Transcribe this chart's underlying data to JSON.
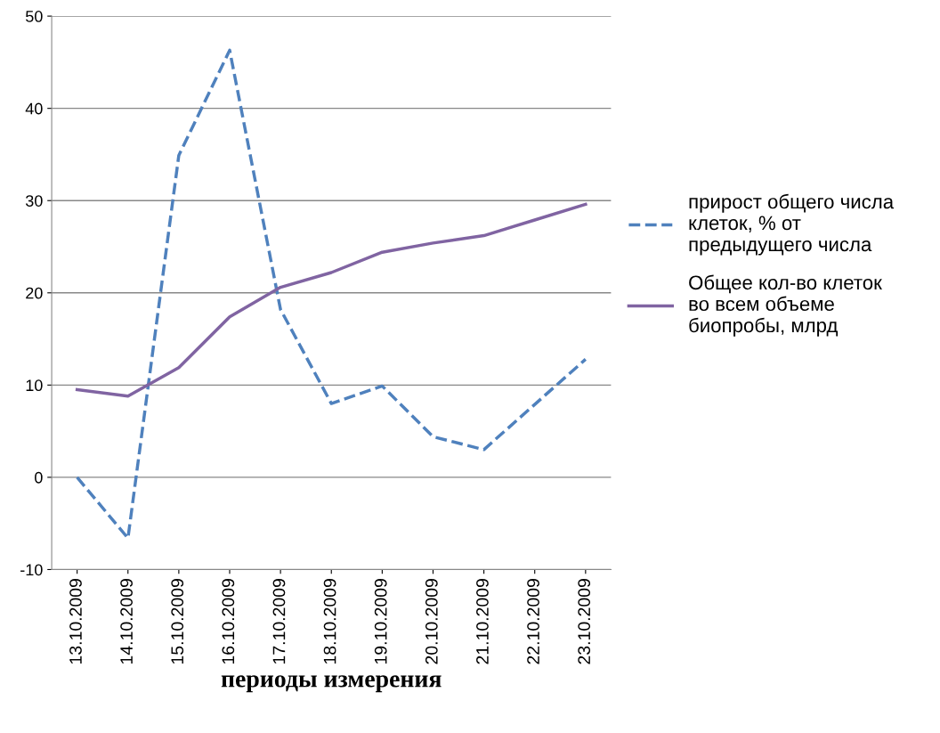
{
  "chart_data": {
    "type": "line",
    "xlabel": "периоды измерения",
    "categories": [
      "13.10.2009",
      "14.10.2009",
      "15.10.2009",
      "16.10.2009",
      "17.10.2009",
      "18.10.2009",
      "19.10.2009",
      "20.10.2009",
      "21.10.2009",
      "22.10.2009",
      "23.10.2009"
    ],
    "series": [
      {
        "name": "прирост общего числа клеток, % от предыдущего числа",
        "color": "#4f81bd",
        "line_style": "dashed",
        "values": [
          0,
          -6.6,
          34.9,
          46.3,
          18.2,
          8.0,
          9.9,
          4.4,
          3.0,
          7.9,
          12.8
        ]
      },
      {
        "name": "Общее кол-во клеток во всем объеме биопробы, млрд",
        "color": "#8064a2",
        "line_style": "solid",
        "values": [
          9.5,
          8.8,
          11.9,
          17.4,
          20.6,
          22.2,
          24.4,
          25.4,
          26.2,
          27.9,
          29.6
        ]
      }
    ],
    "ylim": [
      -10,
      50
    ],
    "yticks": [
      -10,
      0,
      10,
      20,
      30,
      40,
      50
    ],
    "grid": "y",
    "legend": "right",
    "marker": "none"
  }
}
